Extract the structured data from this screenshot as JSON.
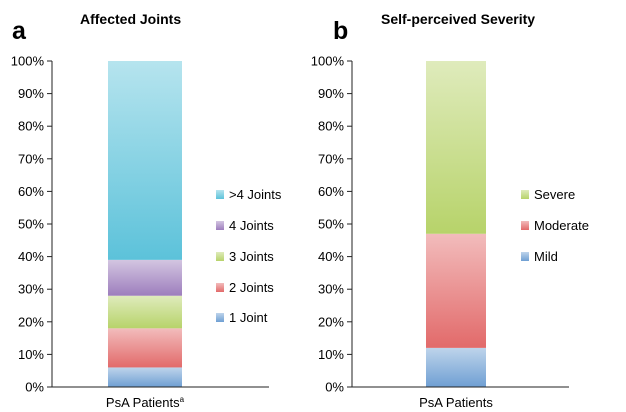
{
  "chart_data": [
    {
      "type": "bar",
      "stacked": true,
      "panel": "a",
      "title": "Affected Joints",
      "categories": [
        "PsA Patients"
      ],
      "category_superscript": "a",
      "y_ticks": [
        "0%",
        "10%",
        "20%",
        "30%",
        "40%",
        "50%",
        "60%",
        "70%",
        "80%",
        "90%",
        "100%"
      ],
      "ylim": [
        0,
        100
      ],
      "legend_position": "right",
      "series": [
        {
          "name": "1 Joint",
          "values": [
            6
          ],
          "color": "#6f9fd3"
        },
        {
          "name": "2 Joints",
          "values": [
            12
          ],
          "color": "#e26a6a"
        },
        {
          "name": "3 Joints",
          "values": [
            10
          ],
          "color": "#b7d36a"
        },
        {
          "name": "4 Joints",
          "values": [
            11
          ],
          "color": "#9d7dbd"
        },
        {
          "name": ">4 Joints",
          "values": [
            61
          ],
          "color": "#5cc2da"
        }
      ]
    },
    {
      "type": "bar",
      "stacked": true,
      "panel": "b",
      "title": "Self-perceived Severity",
      "categories": [
        "PsA Patients"
      ],
      "category_superscript": "",
      "y_ticks": [
        "0%",
        "10%",
        "20%",
        "30%",
        "40%",
        "50%",
        "60%",
        "70%",
        "80%",
        "90%",
        "100%"
      ],
      "ylim": [
        0,
        100
      ],
      "legend_position": "right",
      "series": [
        {
          "name": "Mild",
          "values": [
            12
          ],
          "color": "#6f9fd3"
        },
        {
          "name": "Moderate",
          "values": [
            35
          ],
          "color": "#e26a6a"
        },
        {
          "name": "Severe",
          "values": [
            53
          ],
          "color": "#b7d36a"
        }
      ]
    }
  ]
}
